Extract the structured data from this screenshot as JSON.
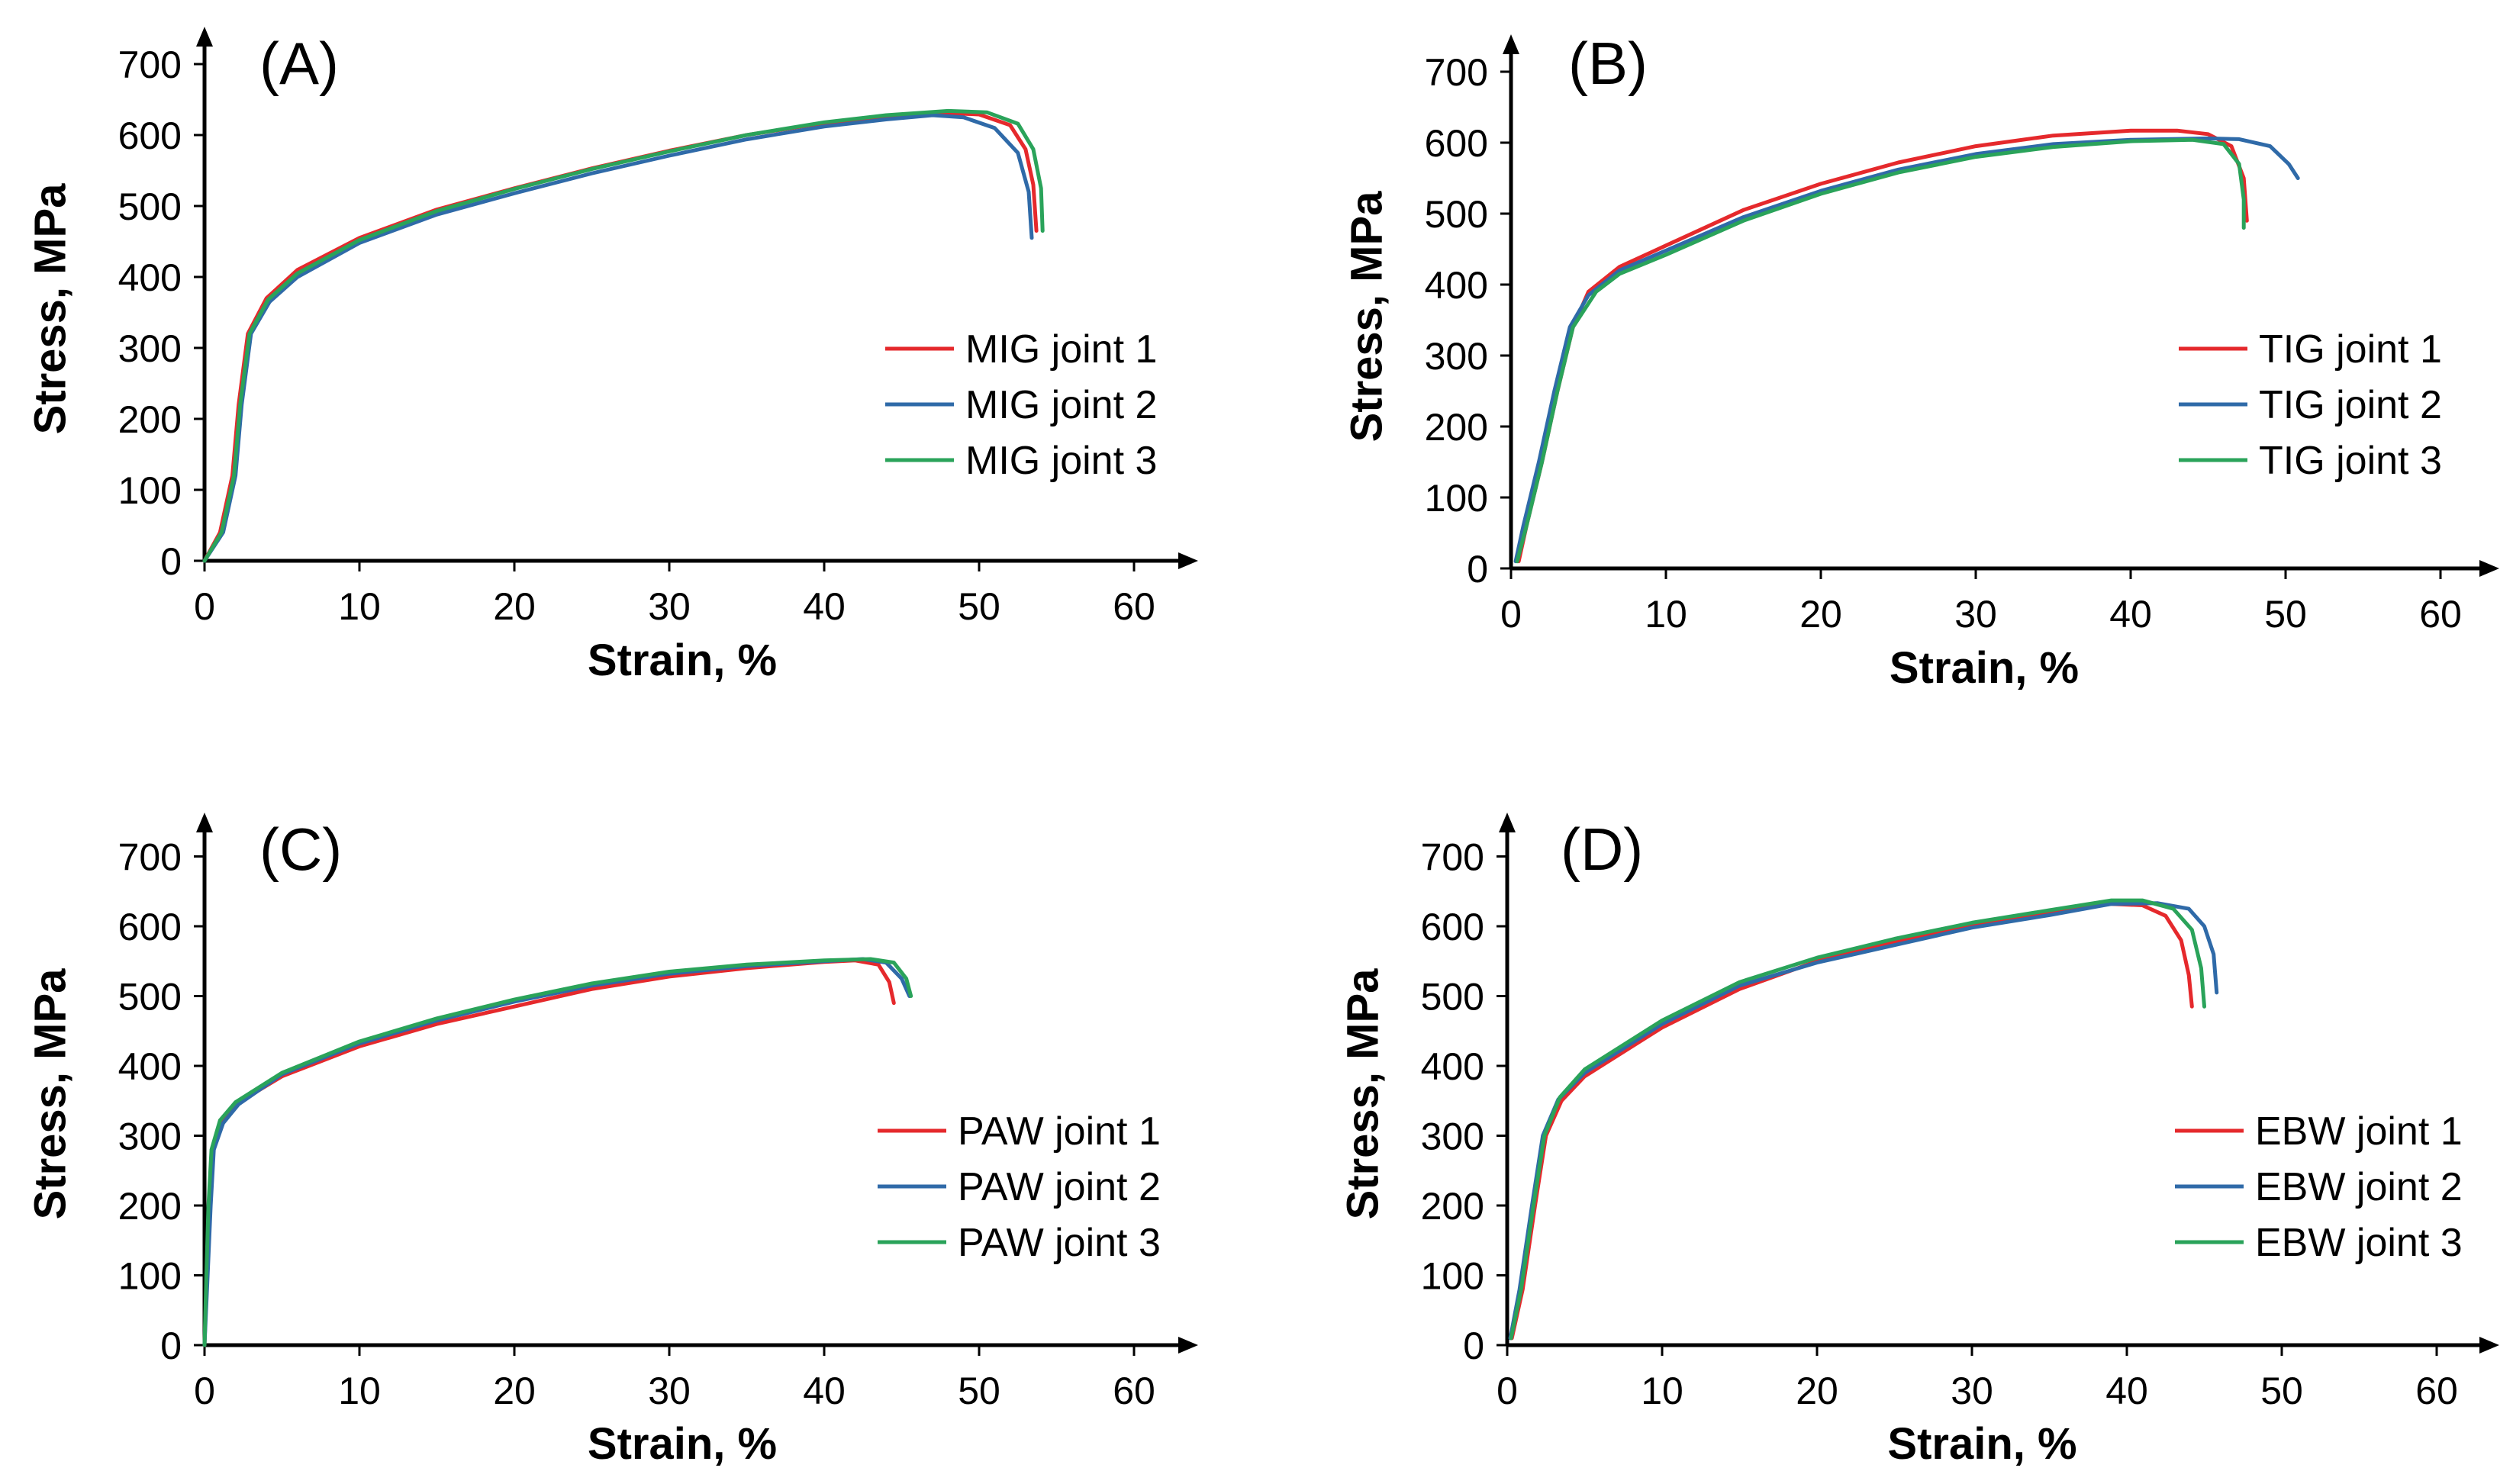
{
  "colors": {
    "joint1": "#e5292c",
    "joint2": "#2f6aa8",
    "joint3": "#2aa35a",
    "axis": "#000000"
  },
  "chart_data": [
    {
      "type": "line",
      "panel_label": "(A)",
      "xlabel": "Strain, %",
      "ylabel": "Stress, MPa",
      "xlim": [
        0,
        65
      ],
      "ylim": [
        0,
        720
      ],
      "xticks": [
        "0",
        "10",
        "20",
        "30",
        "40",
        "50",
        "60"
      ],
      "yticks": [
        "0",
        "100",
        "200",
        "300",
        "400",
        "500",
        "600",
        "700"
      ],
      "legend_position": "center-right",
      "series": [
        {
          "name": "MIG joint 1",
          "color_key": "joint1",
          "points": [
            [
              0,
              0
            ],
            [
              1,
              40
            ],
            [
              1.8,
              120
            ],
            [
              2.2,
              220
            ],
            [
              2.8,
              320
            ],
            [
              4,
              370
            ],
            [
              6,
              410
            ],
            [
              10,
              455
            ],
            [
              15,
              495
            ],
            [
              20,
              525
            ],
            [
              25,
              553
            ],
            [
              30,
              578
            ],
            [
              35,
              600
            ],
            [
              40,
              617
            ],
            [
              44,
              626
            ],
            [
              48,
              631
            ],
            [
              50,
              629
            ],
            [
              52,
              614
            ],
            [
              53,
              580
            ],
            [
              53.5,
              530
            ],
            [
              53.7,
              465
            ]
          ]
        },
        {
          "name": "MIG joint 2",
          "color_key": "joint2",
          "points": [
            [
              0,
              0
            ],
            [
              1.2,
              40
            ],
            [
              2,
              120
            ],
            [
              2.4,
              220
            ],
            [
              3,
              320
            ],
            [
              4.2,
              365
            ],
            [
              6,
              400
            ],
            [
              10,
              448
            ],
            [
              15,
              488
            ],
            [
              20,
              518
            ],
            [
              25,
              546
            ],
            [
              30,
              571
            ],
            [
              35,
              594
            ],
            [
              40,
              612
            ],
            [
              44,
              622
            ],
            [
              47,
              628
            ],
            [
              49,
              625
            ],
            [
              51,
              610
            ],
            [
              52.5,
              575
            ],
            [
              53.2,
              520
            ],
            [
              53.4,
              455
            ]
          ]
        },
        {
          "name": "MIG joint 3",
          "color_key": "joint3",
          "points": [
            [
              0,
              0
            ],
            [
              1.1,
              40
            ],
            [
              1.9,
              120
            ],
            [
              2.3,
              220
            ],
            [
              2.9,
              320
            ],
            [
              4.1,
              368
            ],
            [
              6,
              405
            ],
            [
              10,
              452
            ],
            [
              15,
              493
            ],
            [
              20,
              524
            ],
            [
              25,
              552
            ],
            [
              30,
              577
            ],
            [
              35,
              600
            ],
            [
              40,
              618
            ],
            [
              44,
              628
            ],
            [
              48,
              634
            ],
            [
              50.5,
              632
            ],
            [
              52.5,
              616
            ],
            [
              53.5,
              580
            ],
            [
              54,
              525
            ],
            [
              54.1,
              465
            ]
          ]
        }
      ]
    },
    {
      "type": "line",
      "panel_label": "(B)",
      "xlabel": "Strain, %",
      "ylabel": "Stress, MPa",
      "xlim": [
        0,
        63
      ],
      "ylim": [
        0,
        720
      ],
      "xticks": [
        "0",
        "10",
        "20",
        "30",
        "40",
        "50",
        "60"
      ],
      "yticks": [
        "0",
        "100",
        "200",
        "300",
        "400",
        "500",
        "600",
        "700"
      ],
      "legend_position": "center-right",
      "series": [
        {
          "name": "TIG joint 1",
          "color_key": "joint1",
          "points": [
            [
              0.5,
              10
            ],
            [
              1,
              60
            ],
            [
              2,
              150
            ],
            [
              3,
              250
            ],
            [
              4,
              340
            ],
            [
              5,
              390
            ],
            [
              7,
              425
            ],
            [
              10,
              455
            ],
            [
              15,
              505
            ],
            [
              20,
              542
            ],
            [
              25,
              572
            ],
            [
              30,
              595
            ],
            [
              35,
              610
            ],
            [
              40,
              617
            ],
            [
              43,
              617
            ],
            [
              45,
              612
            ],
            [
              46.5,
              595
            ],
            [
              47.3,
              550
            ],
            [
              47.5,
              490
            ]
          ]
        },
        {
          "name": "TIG joint 2",
          "color_key": "joint2",
          "points": [
            [
              0.3,
              10
            ],
            [
              0.8,
              60
            ],
            [
              1.8,
              150
            ],
            [
              2.8,
              250
            ],
            [
              3.8,
              340
            ],
            [
              5,
              385
            ],
            [
              7,
              420
            ],
            [
              10,
              448
            ],
            [
              15,
              495
            ],
            [
              20,
              532
            ],
            [
              25,
              562
            ],
            [
              30,
              584
            ],
            [
              35,
              598
            ],
            [
              40,
              604
            ],
            [
              45,
              606
            ],
            [
              47,
              605
            ],
            [
              49,
              595
            ],
            [
              50.2,
              570
            ],
            [
              50.8,
              550
            ]
          ]
        },
        {
          "name": "TIG joint 3",
          "color_key": "joint3",
          "points": [
            [
              0.4,
              10
            ],
            [
              1,
              60
            ],
            [
              2,
              150
            ],
            [
              3,
              250
            ],
            [
              4,
              340
            ],
            [
              5.5,
              390
            ],
            [
              7,
              415
            ],
            [
              10,
              442
            ],
            [
              15,
              490
            ],
            [
              20,
              528
            ],
            [
              25,
              558
            ],
            [
              30,
              580
            ],
            [
              35,
              594
            ],
            [
              40,
              602
            ],
            [
              44,
              604
            ],
            [
              46,
              598
            ],
            [
              47,
              570
            ],
            [
              47.3,
              520
            ],
            [
              47.3,
              480
            ]
          ]
        }
      ]
    },
    {
      "type": "line",
      "panel_label": "(C)",
      "xlabel": "Strain, %",
      "ylabel": "Stress, MPa",
      "xlim": [
        0,
        65
      ],
      "ylim": [
        0,
        720
      ],
      "xticks": [
        "0",
        "10",
        "20",
        "30",
        "40",
        "50",
        "60"
      ],
      "yticks": [
        "0",
        "100",
        "200",
        "300",
        "400",
        "500",
        "600",
        "700"
      ],
      "legend_position": "center-right",
      "series": [
        {
          "name": "PAW joint 1",
          "color_key": "joint1",
          "points": [
            [
              0,
              0
            ],
            [
              0.15,
              100
            ],
            [
              0.3,
              200
            ],
            [
              0.5,
              280
            ],
            [
              1,
              320
            ],
            [
              2,
              345
            ],
            [
              5,
              385
            ],
            [
              10,
              428
            ],
            [
              15,
              460
            ],
            [
              20,
              485
            ],
            [
              25,
              510
            ],
            [
              30,
              528
            ],
            [
              35,
              540
            ],
            [
              40,
              549
            ],
            [
              42,
              551
            ],
            [
              43.5,
              545
            ],
            [
              44.2,
              520
            ],
            [
              44.5,
              490
            ]
          ]
        },
        {
          "name": "PAW joint 2",
          "color_key": "joint2",
          "points": [
            [
              0,
              0
            ],
            [
              0.2,
              100
            ],
            [
              0.4,
              200
            ],
            [
              0.6,
              280
            ],
            [
              1.2,
              318
            ],
            [
              2.2,
              345
            ],
            [
              5,
              388
            ],
            [
              10,
              432
            ],
            [
              15,
              465
            ],
            [
              20,
              492
            ],
            [
              25,
              515
            ],
            [
              30,
              532
            ],
            [
              35,
              543
            ],
            [
              40,
              550
            ],
            [
              42.5,
              553
            ],
            [
              44,
              548
            ],
            [
              45,
              525
            ],
            [
              45.5,
              500
            ]
          ]
        },
        {
          "name": "PAW joint 3",
          "color_key": "joint3",
          "points": [
            [
              0,
              0
            ],
            [
              0.12,
              100
            ],
            [
              0.25,
              200
            ],
            [
              0.45,
              280
            ],
            [
              1,
              322
            ],
            [
              2,
              348
            ],
            [
              5,
              390
            ],
            [
              10,
              435
            ],
            [
              15,
              468
            ],
            [
              20,
              495
            ],
            [
              25,
              518
            ],
            [
              30,
              535
            ],
            [
              35,
              545
            ],
            [
              40,
              551
            ],
            [
              43,
              553
            ],
            [
              44.5,
              548
            ],
            [
              45.3,
              525
            ],
            [
              45.6,
              500
            ]
          ]
        }
      ]
    },
    {
      "type": "line",
      "panel_label": "(D)",
      "xlabel": "Strain, %",
      "ylabel": "Stress, MPa",
      "xlim": [
        0,
        63
      ],
      "ylim": [
        0,
        720
      ],
      "xticks": [
        "0",
        "10",
        "20",
        "30",
        "40",
        "50",
        "60"
      ],
      "yticks": [
        "0",
        "100",
        "200",
        "300",
        "400",
        "500",
        "600",
        "700"
      ],
      "legend_position": "center-right",
      "series": [
        {
          "name": "EBW joint 1",
          "color_key": "joint1",
          "points": [
            [
              0.3,
              10
            ],
            [
              1,
              80
            ],
            [
              1.8,
              200
            ],
            [
              2.5,
              300
            ],
            [
              3.5,
              350
            ],
            [
              5,
              385
            ],
            [
              10,
              455
            ],
            [
              15,
              510
            ],
            [
              20,
              550
            ],
            [
              25,
              578
            ],
            [
              30,
              602
            ],
            [
              35,
              620
            ],
            [
              39,
              632
            ],
            [
              41,
              630
            ],
            [
              42.5,
              615
            ],
            [
              43.5,
              580
            ],
            [
              44,
              530
            ],
            [
              44.2,
              485
            ]
          ]
        },
        {
          "name": "EBW joint 2",
          "color_key": "joint2",
          "points": [
            [
              0.2,
              10
            ],
            [
              0.8,
              80
            ],
            [
              1.6,
              200
            ],
            [
              2.3,
              300
            ],
            [
              3.3,
              352
            ],
            [
              5,
              390
            ],
            [
              10,
              460
            ],
            [
              15,
              515
            ],
            [
              20,
              548
            ],
            [
              25,
              573
            ],
            [
              30,
              598
            ],
            [
              35,
              616
            ],
            [
              39,
              632
            ],
            [
              42,
              633
            ],
            [
              44,
              625
            ],
            [
              45,
              600
            ],
            [
              45.6,
              560
            ],
            [
              45.8,
              505
            ]
          ]
        },
        {
          "name": "EBW joint 3",
          "color_key": "joint3",
          "points": [
            [
              0.25,
              10
            ],
            [
              0.9,
              80
            ],
            [
              1.7,
              200
            ],
            [
              2.4,
              300
            ],
            [
              3.4,
              355
            ],
            [
              5,
              395
            ],
            [
              10,
              465
            ],
            [
              15,
              520
            ],
            [
              20,
              555
            ],
            [
              25,
              582
            ],
            [
              30,
              605
            ],
            [
              35,
              623
            ],
            [
              39,
              637
            ],
            [
              41,
              637
            ],
            [
              43,
              625
            ],
            [
              44.2,
              595
            ],
            [
              44.8,
              540
            ],
            [
              45,
              485
            ]
          ]
        }
      ]
    }
  ]
}
